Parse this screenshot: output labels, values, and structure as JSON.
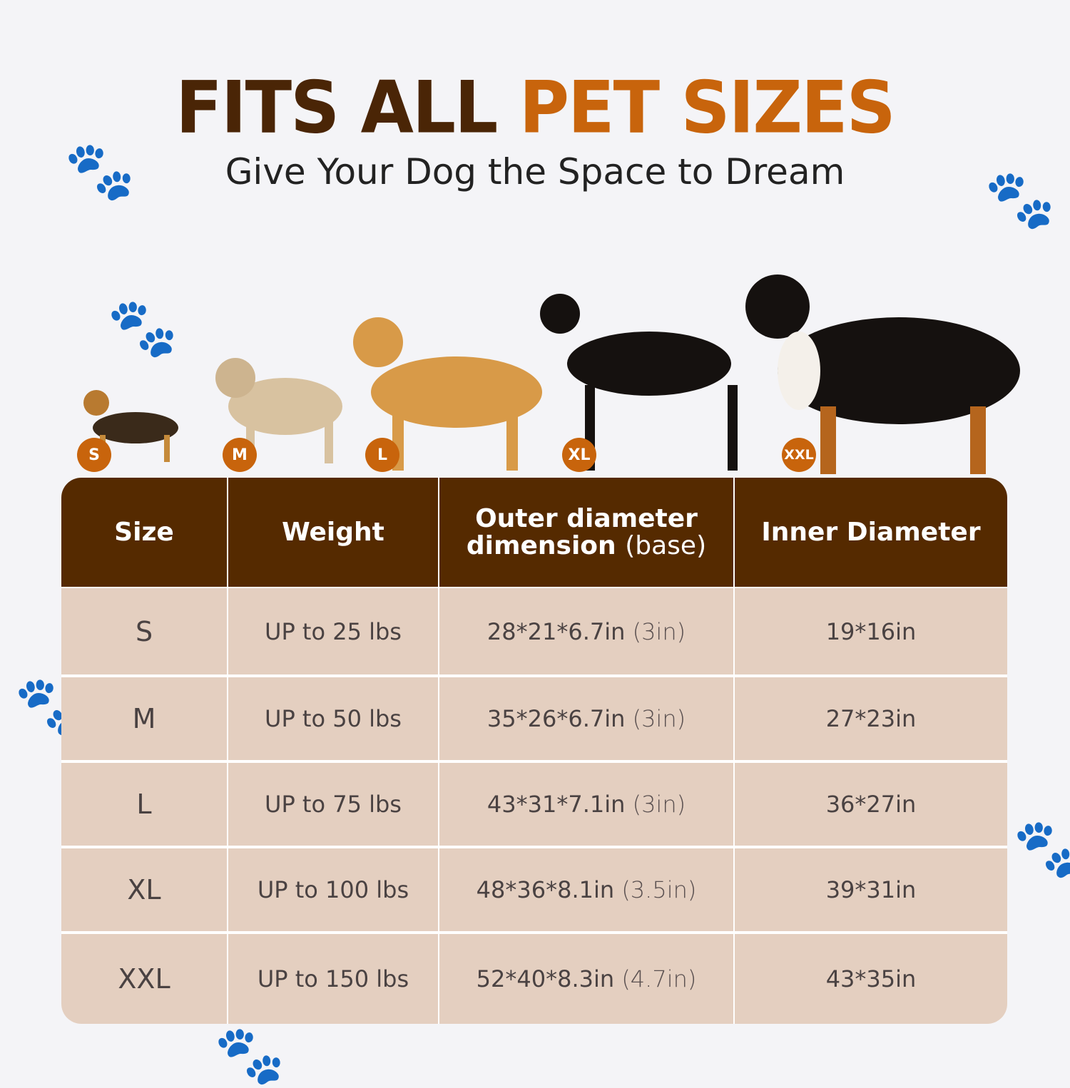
{
  "title": {
    "part1": "FITS ALL",
    "part2": "PET SIZES"
  },
  "subtitle": "Give Your Dog the Space to Dream",
  "colors": {
    "header_bg": "#552a00",
    "cell_bg": "#e4cfc0",
    "accent": "#c8640c",
    "title_dark": "#4a2506"
  },
  "dogs": [
    {
      "badge": "S",
      "breed_icon": "yorkshire-terrier"
    },
    {
      "badge": "M",
      "breed_icon": "pug"
    },
    {
      "badge": "L",
      "breed_icon": "golden-retriever"
    },
    {
      "badge": "XL",
      "breed_icon": "doberman"
    },
    {
      "badge": "XXL",
      "breed_icon": "bernese-mountain-dog"
    }
  ],
  "table": {
    "headers": {
      "size": "Size",
      "weight": "Weight",
      "outer_main": "Outer diameter",
      "outer_line2": "dimension",
      "outer_note": "(base)",
      "inner": "Inner Diameter"
    },
    "rows": [
      {
        "size": "S",
        "weight": "UP to 25 lbs",
        "outer": "28*21*6.7in",
        "base": "(3in)",
        "inner": "19*16in"
      },
      {
        "size": "M",
        "weight": "UP to 50 lbs",
        "outer": "35*26*6.7in",
        "base": "(3in)",
        "inner": "27*23in"
      },
      {
        "size": "L",
        "weight": "UP to 75 lbs",
        "outer": "43*31*7.1in",
        "base": "(3in)",
        "inner": "36*27in"
      },
      {
        "size": "XL",
        "weight": "UP to 100 lbs",
        "outer": "48*36*8.1in",
        "base": "(3.5in)",
        "inner": "39*31in"
      },
      {
        "size": "XXL",
        "weight": "UP to 150 lbs",
        "outer": "52*40*8.3in",
        "base": "(4.7in)",
        "inner": "43*35in"
      }
    ]
  }
}
